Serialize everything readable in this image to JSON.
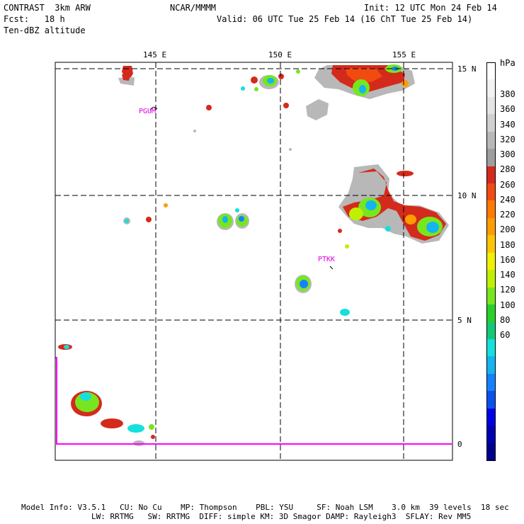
{
  "header": {
    "left_line1": "CONTRAST  3km ARW",
    "left_line2": "Fcst:   18 h",
    "left_line3": "Ten-dBZ altitude",
    "center": "NCAR/MMMM",
    "right_line1": "Init: 12 UTC Mon 24 Feb 14",
    "right_line2": "Valid: 06 UTC Tue 25 Feb 14 (16 ChT Tue 25 Feb 14)"
  },
  "map": {
    "lon_labels": [
      "145 E",
      "150 E",
      "155 E"
    ],
    "lat_labels": [
      "15 N",
      "10 N",
      "5 N",
      "0"
    ],
    "stations": [
      "PGUM",
      "PTKK"
    ],
    "coast_color": "#ff00ff",
    "grid_color": "#000000"
  },
  "colorbar": {
    "unit": "hPa",
    "labels": [
      "380",
      "360",
      "340",
      "320",
      "300",
      "280",
      "260",
      "240",
      "220",
      "200",
      "180",
      "160",
      "140",
      "120",
      "100",
      "80",
      "60"
    ],
    "colors": [
      "#ffffff",
      "#f2f2f2",
      "#e4e4e4",
      "#d0d0d0",
      "#b8b8b8",
      "#9e9e9e",
      "#d42a1c",
      "#f24b12",
      "#ff7a00",
      "#ff9c00",
      "#ffc400",
      "#f0f000",
      "#c0f000",
      "#78e61e",
      "#28d028",
      "#14c878",
      "#14e0dc",
      "#14b4f0",
      "#1482ff",
      "#0a50f0",
      "#0000e6",
      "#0000b4",
      "#00008c"
    ]
  },
  "footer": {
    "line1": "Model Info: V3.5.1   CU: No Cu    MP: Thompson    PBL: YSU     SF: Noah LSM    3.0 km  39 levels  18 sec",
    "line2": "LW: RRTMG   SW: RRTMG  DIFF: simple KM: 3D Smagor DAMP: Rayleigh3  SFLAY: Rev MM5"
  }
}
